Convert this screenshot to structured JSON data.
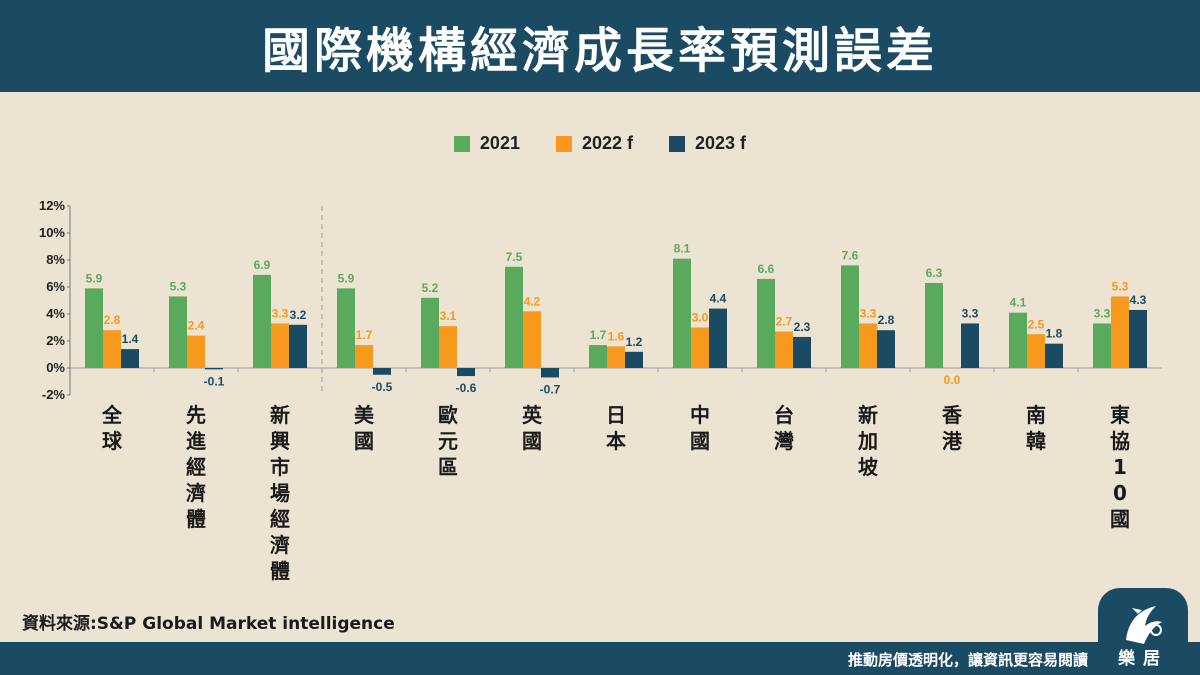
{
  "title": "國際機構經濟成長率預測誤差",
  "source": "資料來源:S&P Global Market intelligence",
  "slogan": "推動房價透明化，讓資訊更容易閱讀",
  "logo_text": "樂居",
  "colors": {
    "header": "#1b4a63",
    "background": "#ede3d2",
    "s2021": "#5aaa5e",
    "s2022": "#f7991c",
    "s2023": "#1b4a63"
  },
  "chart_data": {
    "type": "bar",
    "categories": [
      "全球",
      "先進經濟體",
      "新興市場經濟體",
      "美國",
      "歐元區",
      "英國",
      "日本",
      "中國",
      "台灣",
      "新加坡",
      "香港",
      "南韓",
      "東協10國"
    ],
    "series": [
      {
        "name": "2021",
        "color": "#5aaa5e",
        "label_color": "#5aaa5e",
        "values": [
          5.9,
          5.3,
          6.9,
          5.9,
          5.2,
          7.5,
          1.7,
          8.1,
          6.6,
          7.6,
          6.3,
          4.1,
          3.3
        ]
      },
      {
        "name": "2022 f",
        "color": "#f7991c",
        "label_color": "#f7991c",
        "values": [
          2.8,
          2.4,
          3.3,
          1.7,
          3.1,
          4.2,
          1.6,
          3.0,
          2.7,
          3.3,
          0.0,
          2.5,
          5.3
        ]
      },
      {
        "name": "2023 f",
        "color": "#1b4a63",
        "label_color": "#1b4a63",
        "values": [
          1.4,
          -0.1,
          3.2,
          -0.5,
          -0.6,
          -0.7,
          1.2,
          4.4,
          2.3,
          2.8,
          3.3,
          1.8,
          4.3
        ]
      }
    ],
    "y_ticks": [
      "12%",
      "10%",
      "8%",
      "6%",
      "4%",
      "2%",
      "0%",
      "-2%"
    ],
    "ylim": [
      -2,
      12
    ],
    "grid": false,
    "legend": "top-center",
    "divider_after_category": 3
  }
}
